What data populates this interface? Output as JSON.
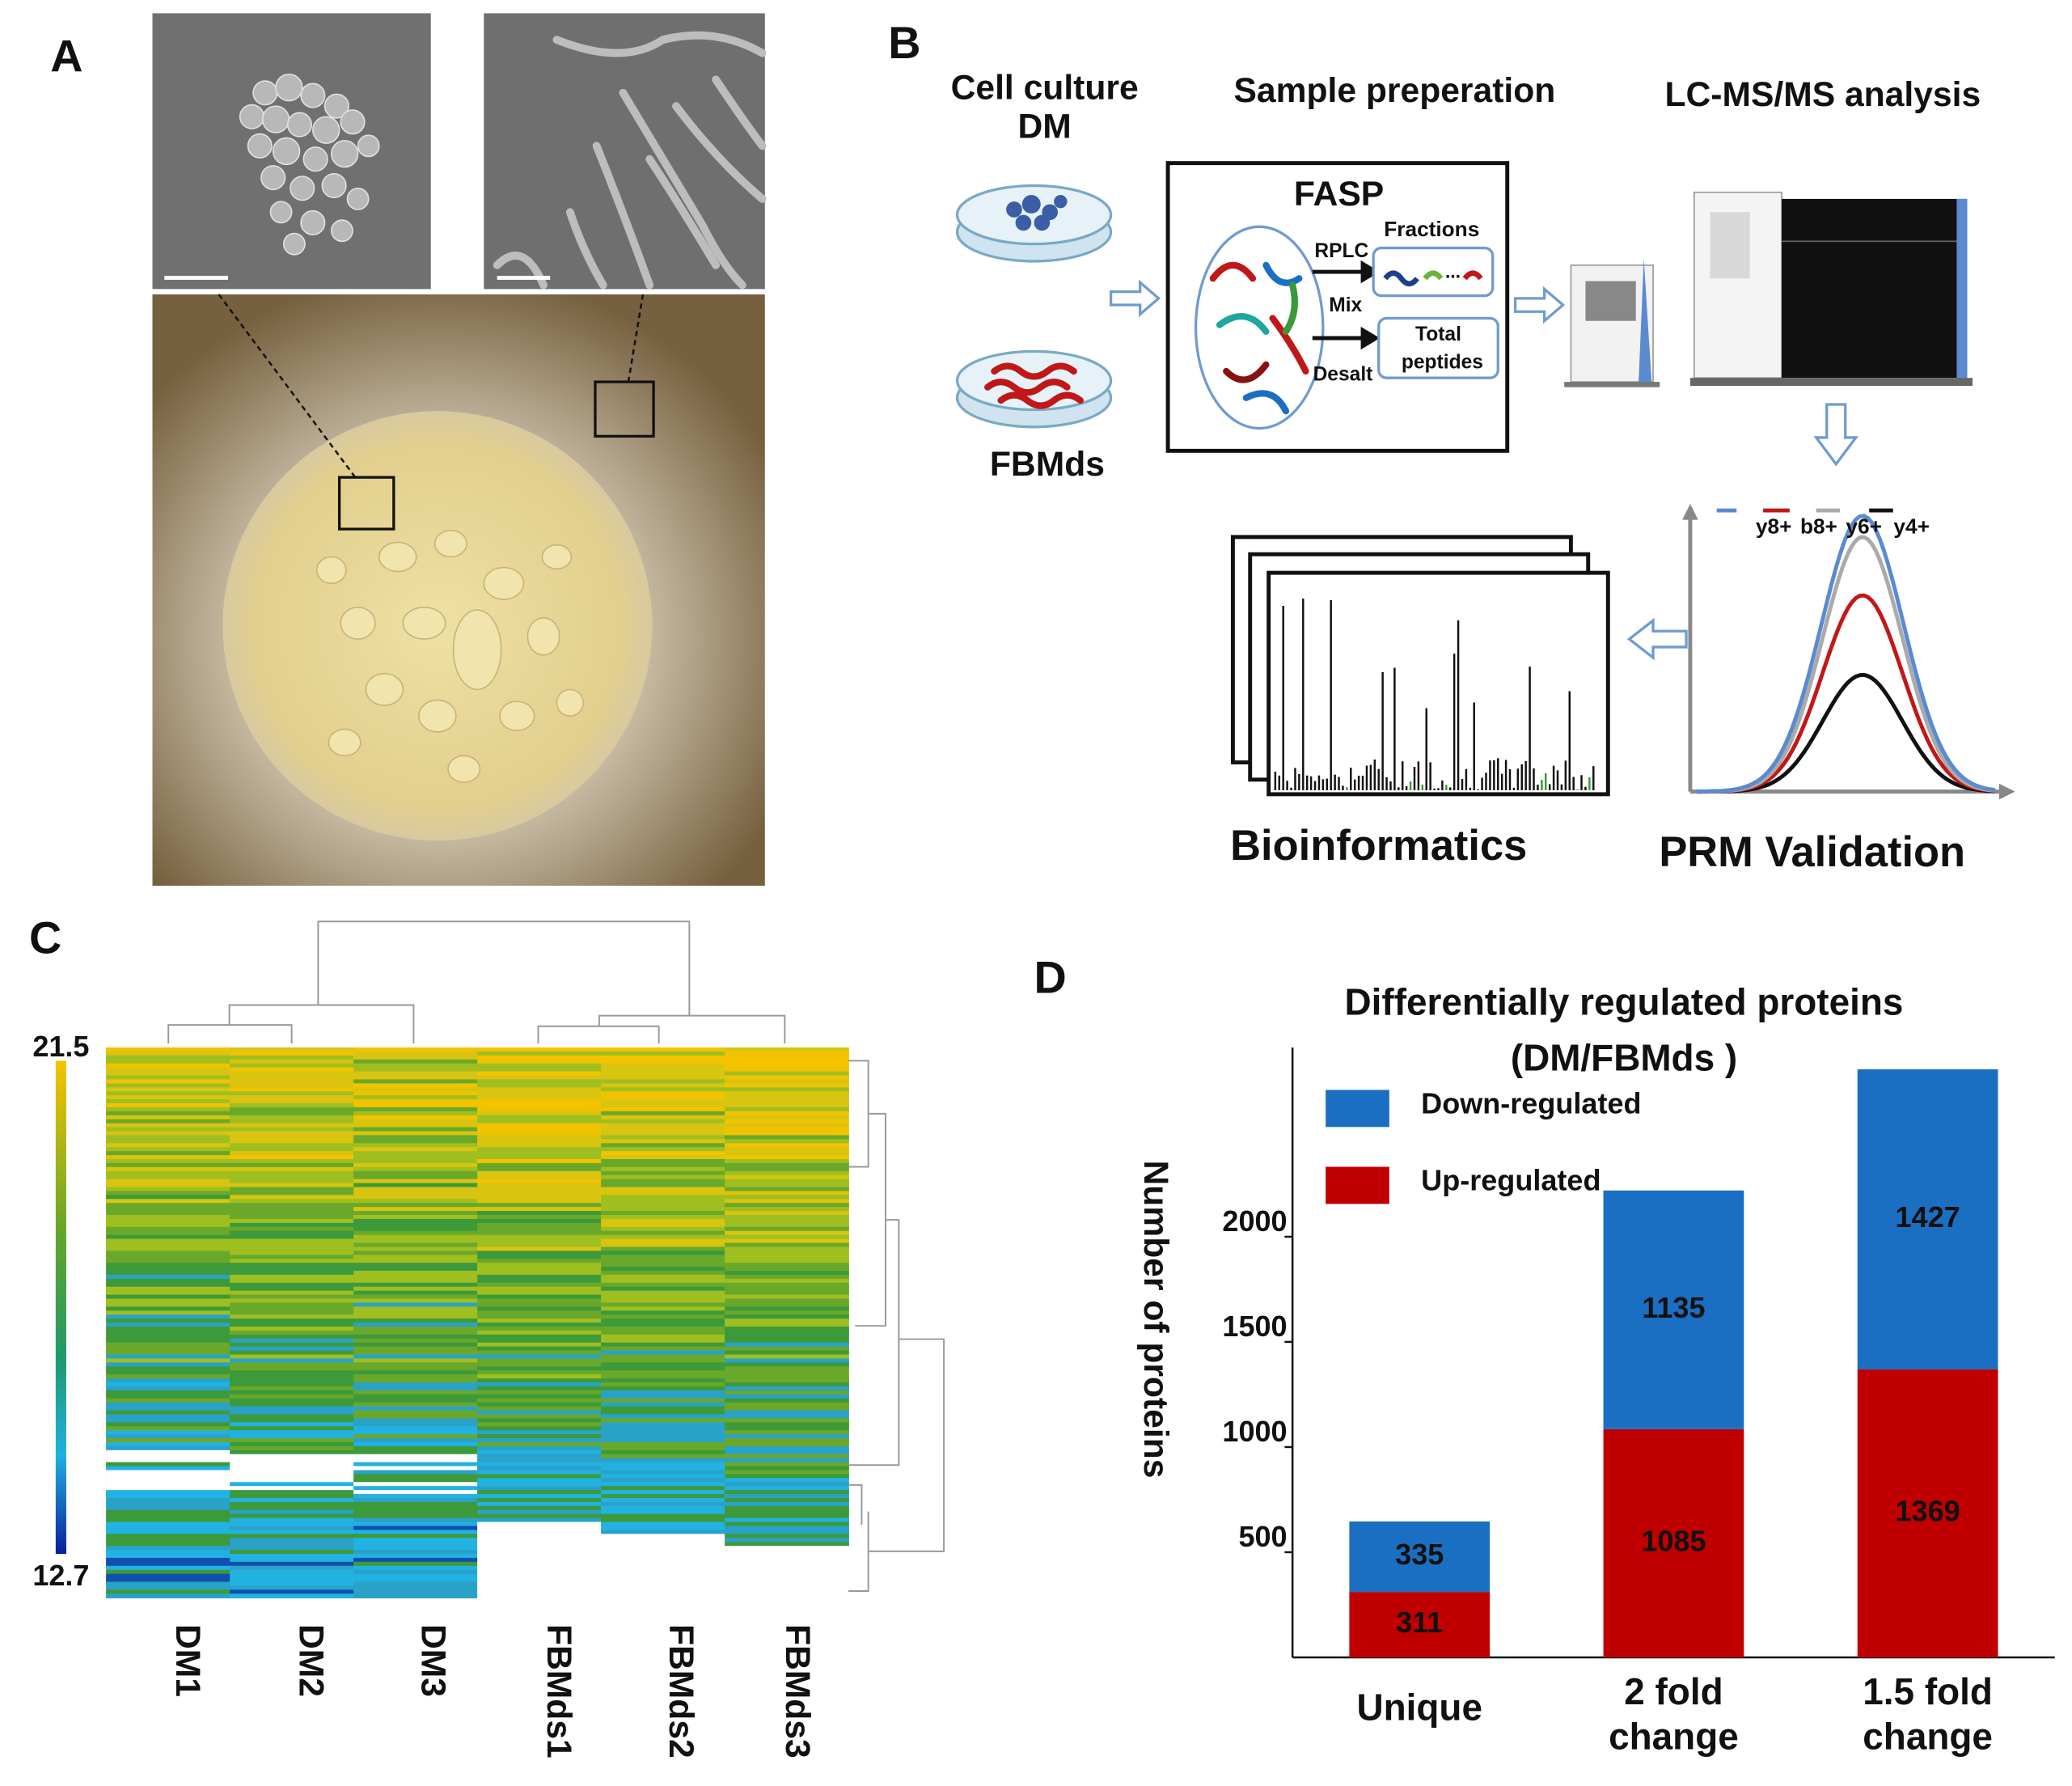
{
  "panel_labels": [
    "A",
    "B",
    "C",
    "D"
  ],
  "workflow": {
    "cell_culture": [
      "Cell culture",
      "DM"
    ],
    "fbmds": "FBMds",
    "sample_prep": "Sample preperation",
    "lcms": "LC-MS/MS analysis",
    "fasp": "FASP",
    "fractions": "Fractions",
    "rplc": "RPLC",
    "mix": "Mix",
    "desalt": "Desalt",
    "ellipsis": "...",
    "total_peptides": [
      "Total",
      "peptides"
    ],
    "ions": [
      "y8+",
      "b8+",
      "y6+",
      "y4+"
    ],
    "bioinformatics": "Bioinformatics",
    "prm": "PRM Validation"
  },
  "heatmap": {
    "colorbar_max": 21.5,
    "colorbar_min": 12.7,
    "samples": [
      "DM1",
      "DM2",
      "DM3",
      "FBMds1",
      "FBMds2",
      "FBMds3"
    ]
  },
  "chart_data": {
    "type": "bar",
    "stacked": true,
    "title": "Differentially regulated proteins",
    "subtitle": "(DM/FBMds )",
    "ylabel": "Number of proteins",
    "categories": [
      [
        "Unique"
      ],
      [
        "2 fold",
        "change"
      ],
      [
        "1.5  fold",
        "change"
      ]
    ],
    "series": [
      {
        "name": "Up-regulated",
        "color": "#c00000",
        "values": [
          311,
          1085,
          1369
        ]
      },
      {
        "name": "Down-regulated",
        "color": "#1b6fc2",
        "values": [
          335,
          1135,
          1427
        ]
      }
    ],
    "ylim": [
      0,
      2900
    ],
    "yticks": [
      500,
      1000,
      1500,
      2000
    ],
    "legend": "upper left"
  }
}
